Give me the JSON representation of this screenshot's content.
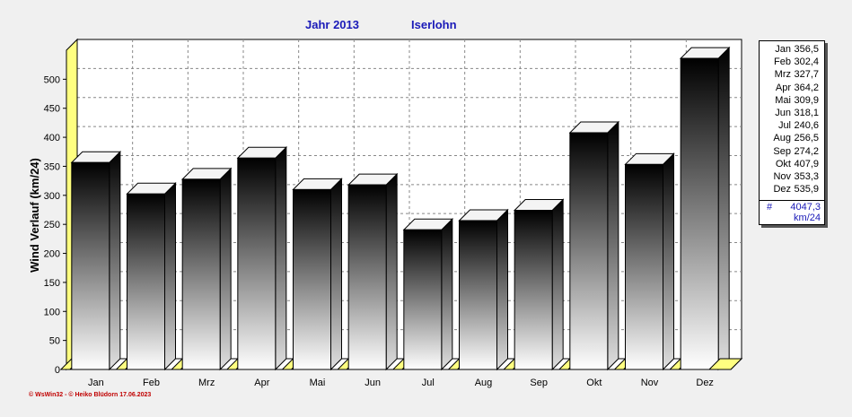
{
  "header": {
    "title_year": "Jahr  2013",
    "title_place": "Iserlohn"
  },
  "footer": {
    "credit": "© WsWin32  -  © Heiko Blüdorn  17.06.2023"
  },
  "legend": {
    "total_marker": "#",
    "total_value": "4047,3",
    "unit": "km/24",
    "entries": [
      {
        "month": "Jan",
        "value": "356,5"
      },
      {
        "month": "Feb",
        "value": "302,4"
      },
      {
        "month": "Mrz",
        "value": "327,7"
      },
      {
        "month": "Apr",
        "value": "364,2"
      },
      {
        "month": "Mai",
        "value": "309,9"
      },
      {
        "month": "Jun",
        "value": "318,1"
      },
      {
        "month": "Jul",
        "value": "240,6"
      },
      {
        "month": "Aug",
        "value": "256,5"
      },
      {
        "month": "Sep",
        "value": "274,2"
      },
      {
        "month": "Okt",
        "value": "407,9"
      },
      {
        "month": "Nov",
        "value": "353,3"
      },
      {
        "month": "Dez",
        "value": "535,9"
      }
    ]
  },
  "chart_data": {
    "type": "bar",
    "title": "Jahr  2013",
    "subtitle": "Iserlohn",
    "ylabel": "Wind Verlauf  (km/24)",
    "xlabel": "",
    "categories": [
      "Jan",
      "Feb",
      "Mrz",
      "Apr",
      "Mai",
      "Jun",
      "Jul",
      "Aug",
      "Sep",
      "Okt",
      "Nov",
      "Dez"
    ],
    "values": [
      356.5,
      302.4,
      327.7,
      364.2,
      309.9,
      318.1,
      240.6,
      256.5,
      274.2,
      407.9,
      353.3,
      535.9
    ],
    "ylim": [
      0,
      550
    ],
    "yticks": [
      0,
      50,
      100,
      150,
      200,
      250,
      300,
      350,
      400,
      450,
      500
    ],
    "grid": true,
    "legend_position": "right",
    "colors": {
      "bar_top": "#000000",
      "bar_bottom": "#ffffff",
      "floor": "#ffff80",
      "wall": "#ffffff",
      "title": "#1a1ab8"
    }
  }
}
